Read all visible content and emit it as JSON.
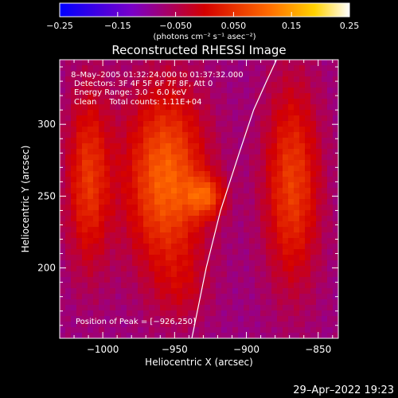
{
  "chart_data": {
    "type": "heatmap",
    "title": "Reconstructed RHESSI Image",
    "xlabel": "Heliocentric X (arcsec)",
    "ylabel": "Heliocentric Y (arcsec)",
    "xlim": [
      -1030,
      -836
    ],
    "ylim": [
      151,
      345
    ],
    "x_ticks": [
      -1000,
      -950,
      -900,
      -850
    ],
    "y_ticks": [
      200,
      250,
      300
    ],
    "x_tick_labels": [
      "−1000",
      "−950",
      "−900",
      "−850"
    ],
    "y_tick_labels": [
      "200",
      "250",
      "300"
    ],
    "colorbar": {
      "min": -0.25,
      "max": 0.25,
      "ticks": [
        -0.25,
        -0.15,
        -0.05,
        0.05,
        0.15,
        0.25
      ],
      "tick_labels": [
        "−0.25",
        "−0.15",
        "−0.050",
        "0.050",
        "0.15",
        "0.25"
      ],
      "units_label": "(photons cm⁻² s⁻¹ asec⁻²)",
      "colormap": "blue-purple-red-orange-yellow-white"
    },
    "info_lines": [
      " 8–May–2005 01:32:24.000 to 01:37:32.000",
      "Detectors: 3F 4F 5F 6F 7F 8F, Att 0",
      "Energy Range: 3.0 – 6.0 keV",
      "Clean     Total counts: 1.11E+04"
    ],
    "peak_label": "Position of Peak = [−926,250]",
    "peak_position": [
      -926,
      250
    ],
    "limb_curve": [
      [
        -938,
        151
      ],
      [
        -928,
        200
      ],
      [
        -918,
        240
      ],
      [
        -905,
        280
      ],
      [
        -895,
        310
      ],
      [
        -886,
        330
      ],
      [
        -879,
        345
      ]
    ],
    "intensity_sources": [
      {
        "x": -1010,
        "y": 262,
        "sx": 11,
        "sy": 44,
        "amp": 0.13
      },
      {
        "x": -956,
        "y": 262,
        "sx": 20,
        "sy": 45,
        "amp": 0.18
      },
      {
        "x": -928,
        "y": 250,
        "sx": 9,
        "sy": 10,
        "amp": 0.12
      },
      {
        "x": -868,
        "y": 258,
        "sx": 14,
        "sy": 50,
        "amp": 0.14
      },
      {
        "x": -944,
        "y": 185,
        "sx": 14,
        "sy": 18,
        "amp": 0.04
      }
    ],
    "background_level": -0.08
  },
  "footer": {
    "timestamp": "29–Apr–2022 19:23"
  },
  "colors": {
    "background": "#000000",
    "text": "#ffffff",
    "limb_line": "#ffffff"
  }
}
